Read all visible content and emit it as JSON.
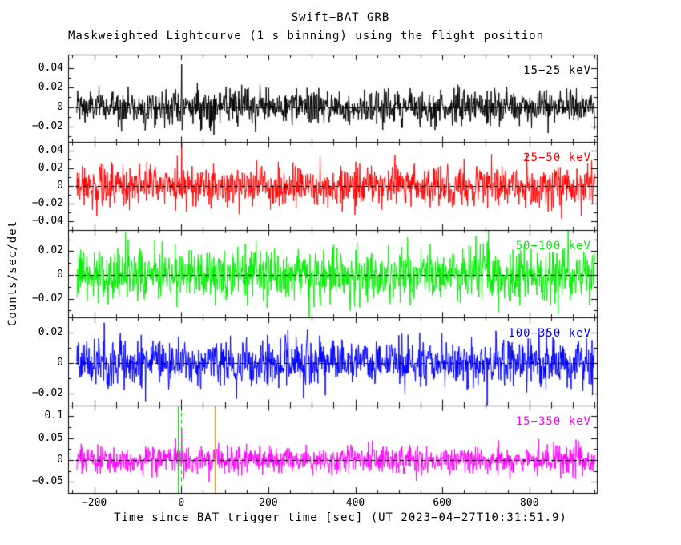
{
  "chart_data": {
    "type": "line",
    "title": "Swift−BAT GRB",
    "subtitle": "Maskweighted Lightcurve (1 s binning) using the flight position",
    "xlabel": "Time since BAT trigger time [sec] (UT 2023−04−27T10:31:51.9)",
    "ylabel": "Counts/sec/det",
    "x_range": [
      -260,
      955
    ],
    "data_t_start": -240,
    "data_t_end": 950,
    "bin_seconds": 1,
    "x_minor_step": 50,
    "x_ticks": [
      {
        "value": -200,
        "label": "−200"
      },
      {
        "value": 0,
        "label": "0"
      },
      {
        "value": 200,
        "label": "200"
      },
      {
        "value": 400,
        "label": "400"
      },
      {
        "value": 600,
        "label": "600"
      },
      {
        "value": 800,
        "label": "800"
      }
    ],
    "zero_line": {
      "color": "#000000",
      "style": "dashed"
    },
    "background": "#ffffff",
    "frame_color": "#000000",
    "grid": false,
    "legend_position": "in-panel-top-right",
    "panels": [
      {
        "label": "15−25 keV",
        "color": "#000000",
        "ylim": [
          -0.036,
          0.054
        ],
        "y_minor_step": 0.01,
        "baseline": 0,
        "noise_sigma": 0.009,
        "spikes": [
          {
            "t": 1,
            "amp": 0.046
          }
        ],
        "y_ticks": [
          {
            "value": -0.02,
            "label": "−0.02"
          },
          {
            "value": 0,
            "label": "0"
          },
          {
            "value": 0.02,
            "label": "0.02"
          },
          {
            "value": 0.04,
            "label": "0.04"
          }
        ]
      },
      {
        "label": "25−50 keV",
        "color": "#ff0000",
        "ylim": [
          -0.05,
          0.05
        ],
        "y_minor_step": 0.01,
        "baseline": 0,
        "noise_sigma": 0.012,
        "spikes": [
          {
            "t": 1,
            "amp": 0.044
          }
        ],
        "y_ticks": [
          {
            "value": -0.04,
            "label": "−0.04"
          },
          {
            "value": -0.02,
            "label": "−0.02"
          },
          {
            "value": 0,
            "label": "0"
          },
          {
            "value": 0.02,
            "label": "0.02"
          },
          {
            "value": 0.04,
            "label": "0.04"
          }
        ]
      },
      {
        "label": "50−100 keV",
        "color": "#00ee00",
        "ylim": [
          -0.036,
          0.038
        ],
        "y_minor_step": 0.01,
        "baseline": 0,
        "noise_sigma": 0.011,
        "spikes": [],
        "y_ticks": [
          {
            "value": -0.02,
            "label": "−0.02"
          },
          {
            "value": 0,
            "label": "0"
          },
          {
            "value": 0.02,
            "label": "0.02"
          }
        ]
      },
      {
        "label": "100−350 keV",
        "color": "#0000ff",
        "ylim": [
          -0.028,
          0.03
        ],
        "y_minor_step": 0.01,
        "baseline": 0,
        "noise_sigma": 0.008,
        "spikes": [],
        "y_ticks": [
          {
            "value": -0.02,
            "label": "−0.02"
          },
          {
            "value": 0,
            "label": "0"
          },
          {
            "value": 0.02,
            "label": "0.02"
          }
        ]
      },
      {
        "label": "15−350 keV",
        "color": "#ff00ff",
        "ylim": [
          -0.075,
          0.125
        ],
        "y_minor_step": 0.025,
        "baseline": 0,
        "noise_sigma": 0.016,
        "spikes": [
          {
            "t": 1,
            "amp": 0.09
          }
        ],
        "y_ticks": [
          {
            "value": -0.05,
            "label": "−0.05"
          },
          {
            "value": 0,
            "label": "0"
          },
          {
            "value": 0.05,
            "label": "0.05"
          },
          {
            "value": 0.1,
            "label": "0.1"
          }
        ],
        "vlines": [
          {
            "t": -8,
            "color": "#00cc00",
            "style": "solid"
          },
          {
            "t": 0,
            "color": "#00cc00",
            "style": "dashed"
          },
          {
            "t": 77,
            "color": "#cc9900",
            "style": "solid"
          }
        ]
      }
    ]
  }
}
